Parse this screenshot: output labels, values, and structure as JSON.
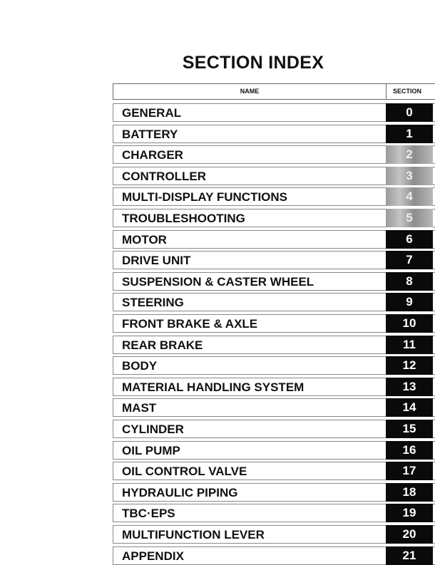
{
  "title": "SECTION INDEX",
  "table": {
    "header": {
      "name": "NAME",
      "section": "SECTION"
    },
    "rows": [
      {
        "name": "GENERAL",
        "section": "0",
        "style": "black"
      },
      {
        "name": "BATTERY",
        "section": "1",
        "style": "black"
      },
      {
        "name": "CHARGER",
        "section": "2",
        "style": "gray"
      },
      {
        "name": "CONTROLLER",
        "section": "3",
        "style": "gray"
      },
      {
        "name": "MULTI-DISPLAY FUNCTIONS",
        "section": "4",
        "style": "gray"
      },
      {
        "name": "TROUBLESHOOTING",
        "section": "5",
        "style": "gray"
      },
      {
        "name": "MOTOR",
        "section": "6",
        "style": "black"
      },
      {
        "name": "DRIVE UNIT",
        "section": "7",
        "style": "black"
      },
      {
        "name": "SUSPENSION & CASTER WHEEL",
        "section": "8",
        "style": "black"
      },
      {
        "name": "STEERING",
        "section": "9",
        "style": "black"
      },
      {
        "name": "FRONT BRAKE & AXLE",
        "section": "10",
        "style": "black"
      },
      {
        "name": "REAR BRAKE",
        "section": "11",
        "style": "black"
      },
      {
        "name": "BODY",
        "section": "12",
        "style": "black"
      },
      {
        "name": "MATERIAL HANDLING SYSTEM",
        "section": "13",
        "style": "black"
      },
      {
        "name": "MAST",
        "section": "14",
        "style": "black"
      },
      {
        "name": "CYLINDER",
        "section": "15",
        "style": "black"
      },
      {
        "name": "OIL PUMP",
        "section": "16",
        "style": "black"
      },
      {
        "name": "OIL CONTROL VALVE",
        "section": "17",
        "style": "black"
      },
      {
        "name": "HYDRAULIC PIPING",
        "section": "18",
        "style": "black"
      },
      {
        "name": "TBC·EPS",
        "section": "19",
        "style": "black"
      },
      {
        "name": "MULTIFUNCTION LEVER",
        "section": "20",
        "style": "black"
      },
      {
        "name": "APPENDIX",
        "section": "21",
        "style": "black"
      }
    ]
  }
}
